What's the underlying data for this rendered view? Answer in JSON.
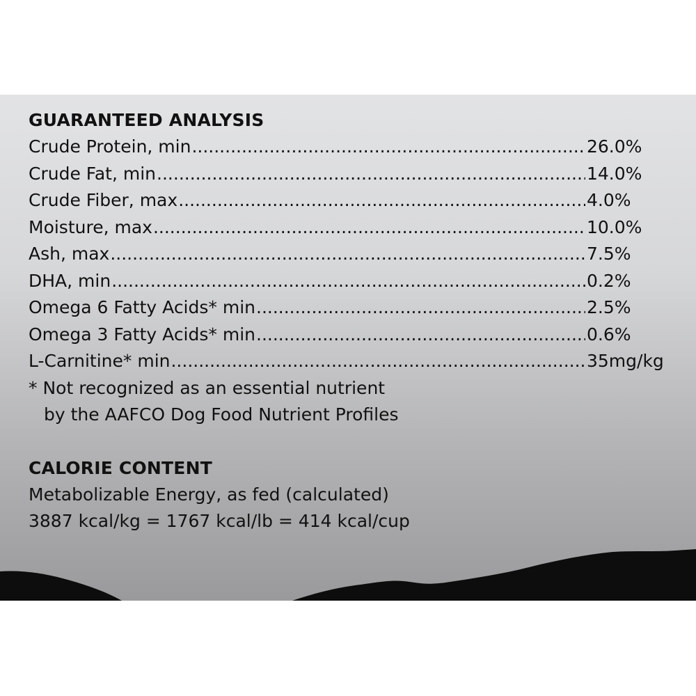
{
  "guaranteed_analysis": {
    "title": "GUARANTEED ANALYSIS",
    "rows": [
      {
        "label": "Crude Protein, min",
        "value": " 26.0%"
      },
      {
        "label": "Crude Fat, min",
        "value": "14.0%"
      },
      {
        "label": "Crude Fiber, max",
        "value": "4.0%"
      },
      {
        "label": "Moisture, max",
        "value": "10.0%"
      },
      {
        "label": "Ash, max",
        "value": "7.5%"
      },
      {
        "label": "DHA, min",
        "value": " 0.2%"
      },
      {
        "label": "Omega 6 Fatty Acids* min",
        "value": "2.5%"
      },
      {
        "label": "Omega 3 Fatty Acids* min",
        "value": "0.6%"
      },
      {
        "label": "L-Carnitine* min",
        "value": "35mg/kg"
      }
    ],
    "footnote_line1": "* Not recognized as an essential nutrient",
    "footnote_line2": "by the AAFCO Dog Food Nutrient Profiles"
  },
  "calorie_content": {
    "title": "CALORIE CONTENT",
    "line1": "Metabolizable Energy, as fed (calculated)",
    "line2": "3887 kcal/kg = 1767 kcal/lb = 414 kcal/cup"
  },
  "colors": {
    "text": "#111111",
    "panel_top": "#e2e3e5",
    "panel_bottom": "#9a9a9c",
    "silhouette": "#0d0d0d"
  }
}
